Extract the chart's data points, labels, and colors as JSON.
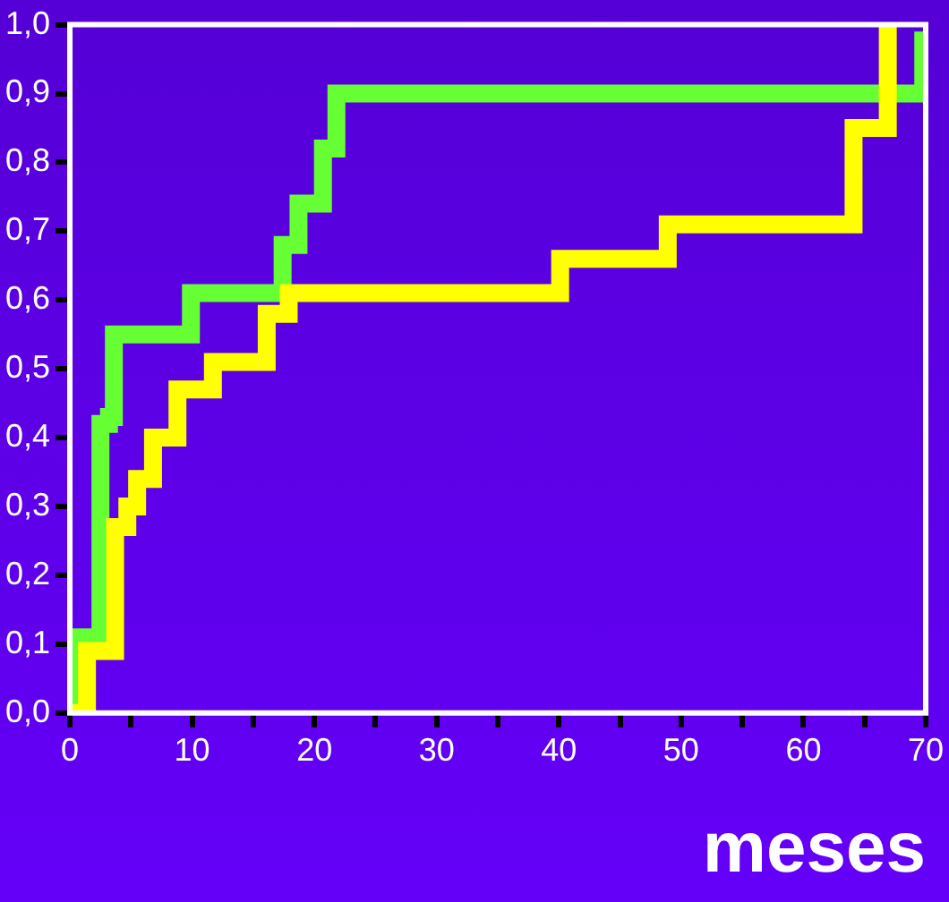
{
  "chart_data": {
    "type": "step",
    "xlabel": "meses",
    "xlim": [
      0,
      70
    ],
    "ylim": [
      0,
      1
    ],
    "xticks": [
      0,
      {
        "value": 5,
        "label": null
      },
      10,
      {
        "value": 15,
        "label": null
      },
      20,
      {
        "value": 25,
        "label": null
      },
      30,
      {
        "value": 35,
        "label": null
      },
      40,
      {
        "value": 45,
        "label": null
      },
      50,
      {
        "value": 55,
        "label": null
      },
      60,
      {
        "value": 65,
        "label": null
      },
      70
    ],
    "yticks": [
      {
        "value": 0,
        "label": "0,0"
      },
      {
        "value": 0.1,
        "label": "0,1"
      },
      {
        "value": 0.2,
        "label": "0,2"
      },
      {
        "value": 0.3,
        "label": "0,3"
      },
      {
        "value": 0.4,
        "label": "0,4"
      },
      {
        "value": 0.5,
        "label": "0,5"
      },
      {
        "value": 0.6,
        "label": "0,6"
      },
      {
        "value": 0.7,
        "label": "0,7"
      },
      {
        "value": 0.8,
        "label": "0,8"
      },
      {
        "value": 0.9,
        "label": "0,9"
      },
      {
        "value": 1,
        "label": "1,0"
      }
    ],
    "grid": false,
    "legend": false,
    "series": [
      {
        "color": "#ffff00",
        "x": [
          0,
          1.4,
          3.7,
          4.7,
          5.5,
          6.8,
          8.8,
          11.7,
          16.1,
          17.9,
          40.1,
          48.9,
          64.1,
          66.9
        ],
        "values": [
          0,
          0.09,
          0.27,
          0.3,
          0.34,
          0.4,
          0.47,
          0.51,
          0.58,
          0.61,
          0.66,
          0.71,
          0.85,
          1
        ]
      },
      {
        "color": "#66ff33",
        "x": [
          0,
          0.3,
          2.5,
          3.2,
          3.6,
          9.9,
          17.4,
          18.7,
          20.7,
          21.8,
          69.8
        ],
        "values": [
          0,
          0.11,
          0.42,
          0.43,
          0.55,
          0.61,
          0.68,
          0.74,
          0.82,
          0.9,
          0.99
        ]
      }
    ]
  }
}
